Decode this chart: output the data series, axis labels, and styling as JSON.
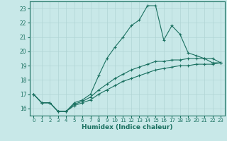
{
  "title": "",
  "xlabel": "Humidex (Indice chaleur)",
  "ylabel": "",
  "bg_color": "#c8e8e8",
  "grid_color": "#b0d4d4",
  "line_color": "#1a7060",
  "xlim": [
    -0.5,
    23.5
  ],
  "ylim": [
    15.5,
    23.5
  ],
  "yticks": [
    16,
    17,
    18,
    19,
    20,
    21,
    22,
    23
  ],
  "xticks": [
    0,
    1,
    2,
    3,
    4,
    5,
    6,
    7,
    8,
    9,
    10,
    11,
    12,
    13,
    14,
    15,
    16,
    17,
    18,
    19,
    20,
    21,
    22,
    23
  ],
  "series1_x": [
    0,
    1,
    2,
    3,
    4,
    5,
    6,
    7,
    8,
    9,
    10,
    11,
    12,
    13,
    14,
    15,
    16,
    17,
    18,
    19,
    20,
    21,
    22,
    23
  ],
  "series1_y": [
    17.0,
    16.4,
    16.4,
    15.8,
    15.8,
    16.4,
    16.6,
    17.0,
    18.3,
    19.5,
    20.3,
    21.0,
    21.8,
    22.2,
    23.2,
    23.2,
    20.8,
    21.8,
    21.2,
    19.9,
    19.7,
    19.5,
    19.2,
    19.2
  ],
  "series2_x": [
    0,
    1,
    2,
    3,
    4,
    5,
    6,
    7,
    8,
    9,
    10,
    11,
    12,
    13,
    14,
    15,
    16,
    17,
    18,
    19,
    20,
    21,
    22,
    23
  ],
  "series2_y": [
    17.0,
    16.4,
    16.4,
    15.8,
    15.8,
    16.3,
    16.5,
    16.8,
    17.3,
    17.7,
    18.1,
    18.4,
    18.7,
    18.9,
    19.1,
    19.3,
    19.3,
    19.4,
    19.4,
    19.5,
    19.5,
    19.5,
    19.5,
    19.2
  ],
  "series3_x": [
    0,
    1,
    2,
    3,
    4,
    5,
    6,
    7,
    8,
    9,
    10,
    11,
    12,
    13,
    14,
    15,
    16,
    17,
    18,
    19,
    20,
    21,
    22,
    23
  ],
  "series3_y": [
    17.0,
    16.4,
    16.4,
    15.8,
    15.8,
    16.2,
    16.4,
    16.6,
    17.0,
    17.3,
    17.6,
    17.9,
    18.1,
    18.3,
    18.5,
    18.7,
    18.8,
    18.9,
    19.0,
    19.0,
    19.1,
    19.1,
    19.1,
    19.2
  ]
}
